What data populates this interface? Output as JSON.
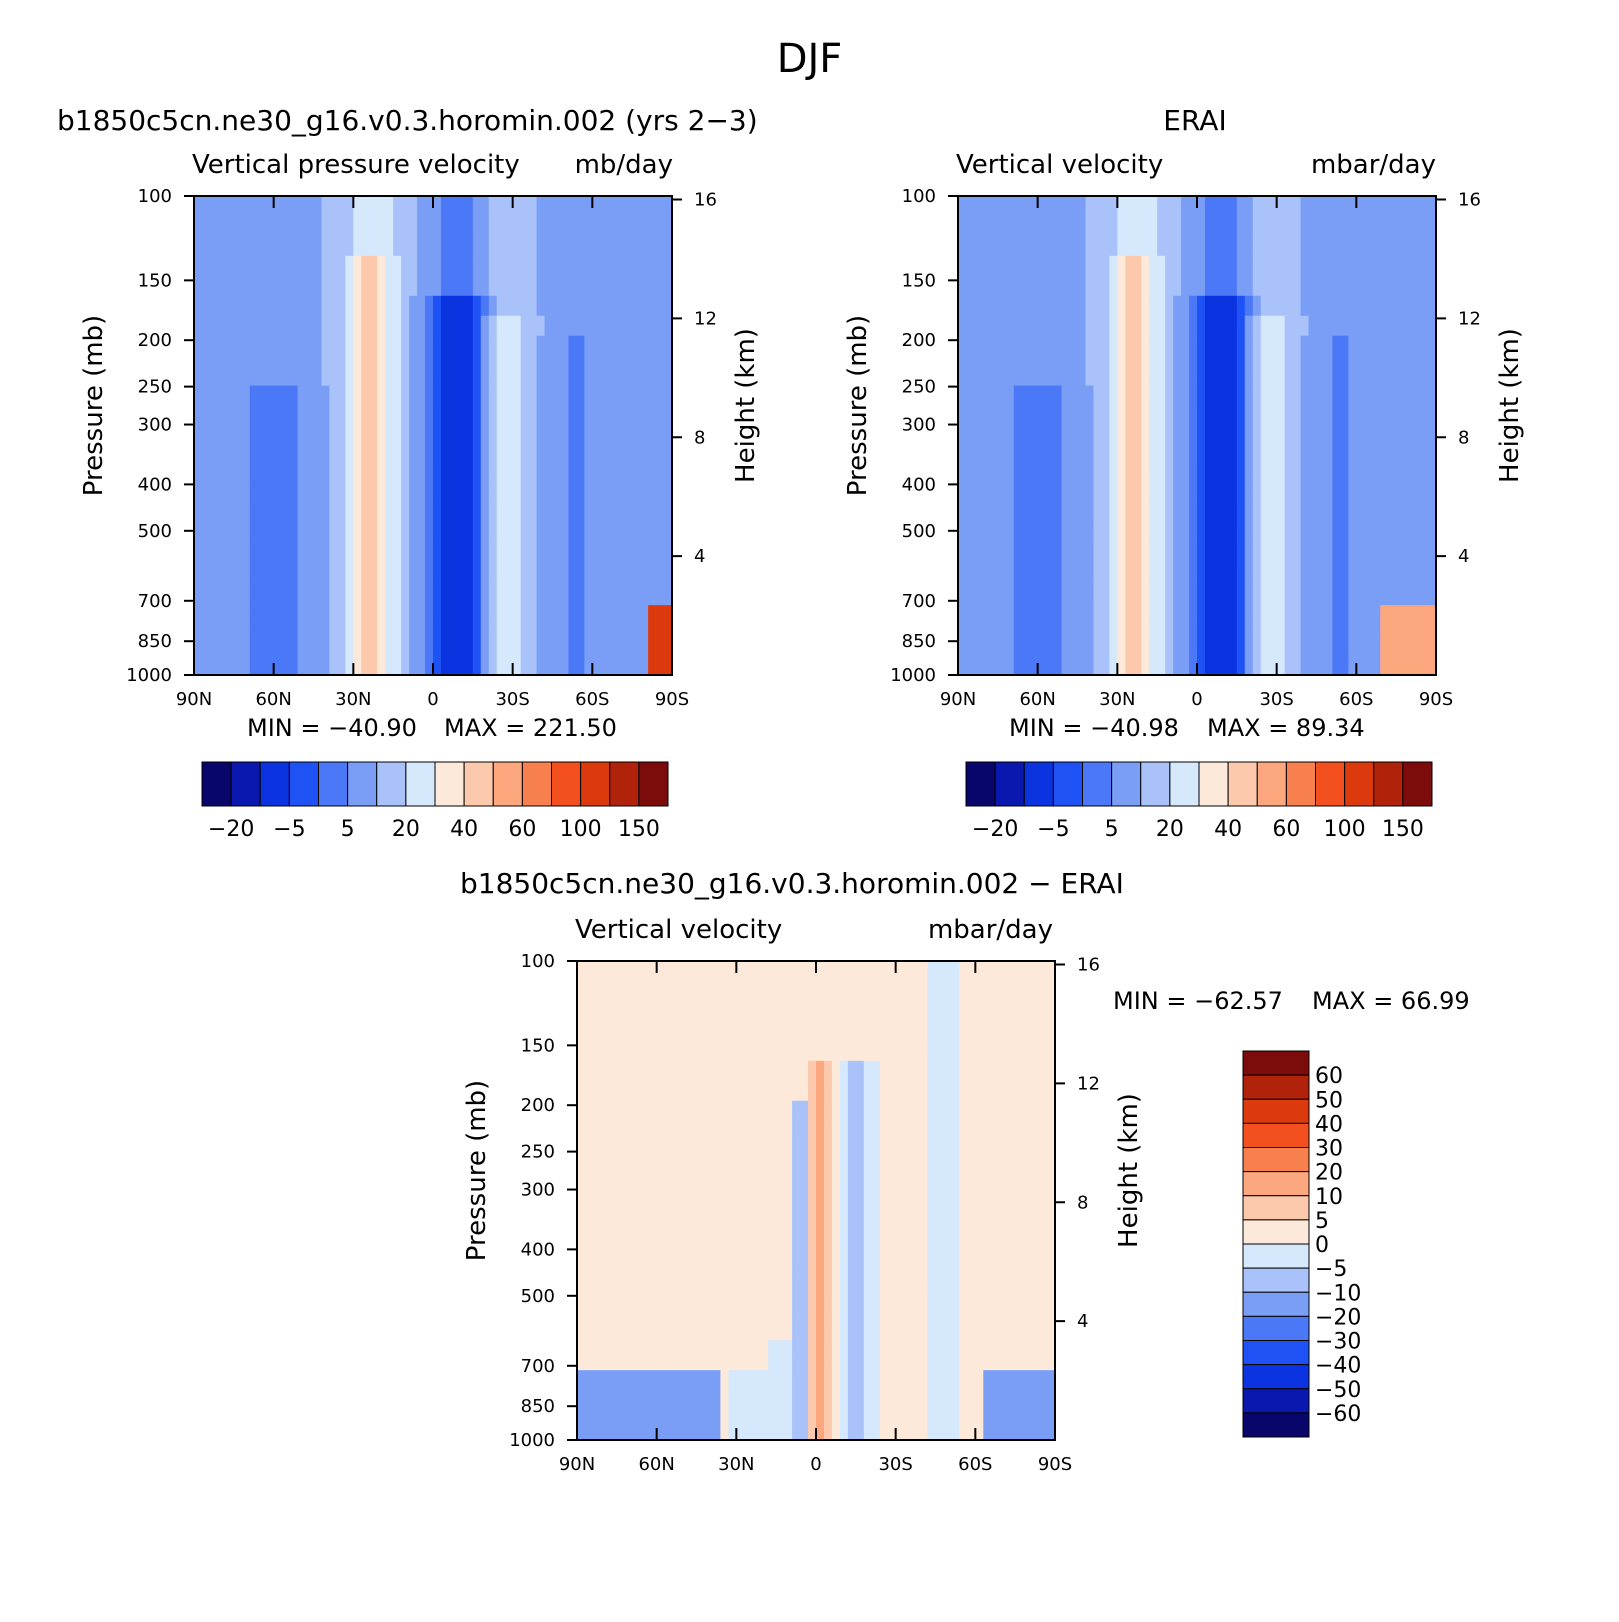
{
  "figure_title": "DJF",
  "chart_data": [
    {
      "type": "heatmap",
      "title": "b1850c5cn.ne30_g16.v0.3.horomin.002 (yrs 2−3)",
      "left_subtitle": "Vertical pressure velocity",
      "right_subtitle": "mb/day",
      "xlabel": "",
      "ylabel": "Pressure (mb)",
      "ylabel_right": "Height (km)",
      "x_ticks": [
        "90N",
        "60N",
        "30N",
        "0",
        "30S",
        "60S",
        "90S"
      ],
      "y_ticks": [
        "100",
        "150",
        "200",
        "250",
        "300",
        "400",
        "500",
        "700",
        "850",
        "1000"
      ],
      "y_ticks_right": [
        "16",
        "12",
        "8",
        "4"
      ],
      "y_scale": "log",
      "ylim": [
        1000,
        100
      ],
      "xlim": [
        "90N",
        "90S"
      ],
      "min_text": "MIN = −40.90",
      "max_text": "MAX = 221.50",
      "colorbar": {
        "orientation": "horizontal",
        "tick_labels": [
          "−20",
          "−5",
          "5",
          "20",
          "40",
          "60",
          "100",
          "150"
        ],
        "colors": [
          "#08066b",
          "#0a18b0",
          "#0b34e0",
          "#1f52f5",
          "#4a78f7",
          "#7a9ef6",
          "#a9c3fa",
          "#d6e8fc",
          "#fde9d9",
          "#fcc9ad",
          "#fca77e",
          "#f8804f",
          "#f4501f",
          "#dc3a0c",
          "#b0230a",
          "#7c0c0c"
        ]
      }
    },
    {
      "type": "heatmap",
      "title": "ERAI",
      "left_subtitle": "Vertical velocity",
      "right_subtitle": "mbar/day",
      "xlabel": "",
      "ylabel": "Pressure (mb)",
      "ylabel_right": "Height (km)",
      "x_ticks": [
        "90N",
        "60N",
        "30N",
        "0",
        "30S",
        "60S",
        "90S"
      ],
      "y_ticks": [
        "100",
        "150",
        "200",
        "250",
        "300",
        "400",
        "500",
        "700",
        "850",
        "1000"
      ],
      "y_ticks_right": [
        "16",
        "12",
        "8",
        "4"
      ],
      "y_scale": "log",
      "ylim": [
        1000,
        100
      ],
      "xlim": [
        "90N",
        "90S"
      ],
      "min_text": "MIN = −40.98",
      "max_text": "MAX =  89.34",
      "colorbar": {
        "orientation": "horizontal",
        "tick_labels": [
          "−20",
          "−5",
          "5",
          "20",
          "40",
          "60",
          "100",
          "150"
        ],
        "colors": [
          "#08066b",
          "#0a18b0",
          "#0b34e0",
          "#1f52f5",
          "#4a78f7",
          "#7a9ef6",
          "#a9c3fa",
          "#d6e8fc",
          "#fde9d9",
          "#fcc9ad",
          "#fca77e",
          "#f8804f",
          "#f4501f",
          "#dc3a0c",
          "#b0230a",
          "#7c0c0c"
        ]
      }
    },
    {
      "type": "heatmap",
      "title": "b1850c5cn.ne30_g16.v0.3.horomin.002 − ERAI",
      "left_subtitle": "Vertical velocity",
      "right_subtitle": "mbar/day",
      "xlabel": "",
      "ylabel": "Pressure (mb)",
      "ylabel_right": "Height (km)",
      "x_ticks": [
        "90N",
        "60N",
        "30N",
        "0",
        "30S",
        "60S",
        "90S"
      ],
      "y_ticks": [
        "100",
        "150",
        "200",
        "250",
        "300",
        "400",
        "500",
        "700",
        "850",
        "1000"
      ],
      "y_ticks_right": [
        "16",
        "12",
        "8",
        "4"
      ],
      "y_scale": "log",
      "ylim": [
        1000,
        100
      ],
      "xlim": [
        "90N",
        "90S"
      ],
      "min_text": "MIN = −62.57",
      "max_text": "MAX =   66.99",
      "colorbar": {
        "orientation": "vertical",
        "tick_labels": [
          "60",
          "50",
          "40",
          "30",
          "20",
          "10",
          "5",
          "0",
          "−5",
          "−10",
          "−20",
          "−30",
          "−40",
          "−50",
          "−60"
        ],
        "colors": [
          "#7c0c0c",
          "#b0230a",
          "#dc3a0c",
          "#f4501f",
          "#f8804f",
          "#fca77e",
          "#fcc9ad",
          "#fde9d9",
          "#d6e8fc",
          "#a9c3fa",
          "#7a9ef6",
          "#4a78f7",
          "#1f52f5",
          "#0b34e0",
          "#0a18b0",
          "#08066b"
        ]
      }
    }
  ]
}
